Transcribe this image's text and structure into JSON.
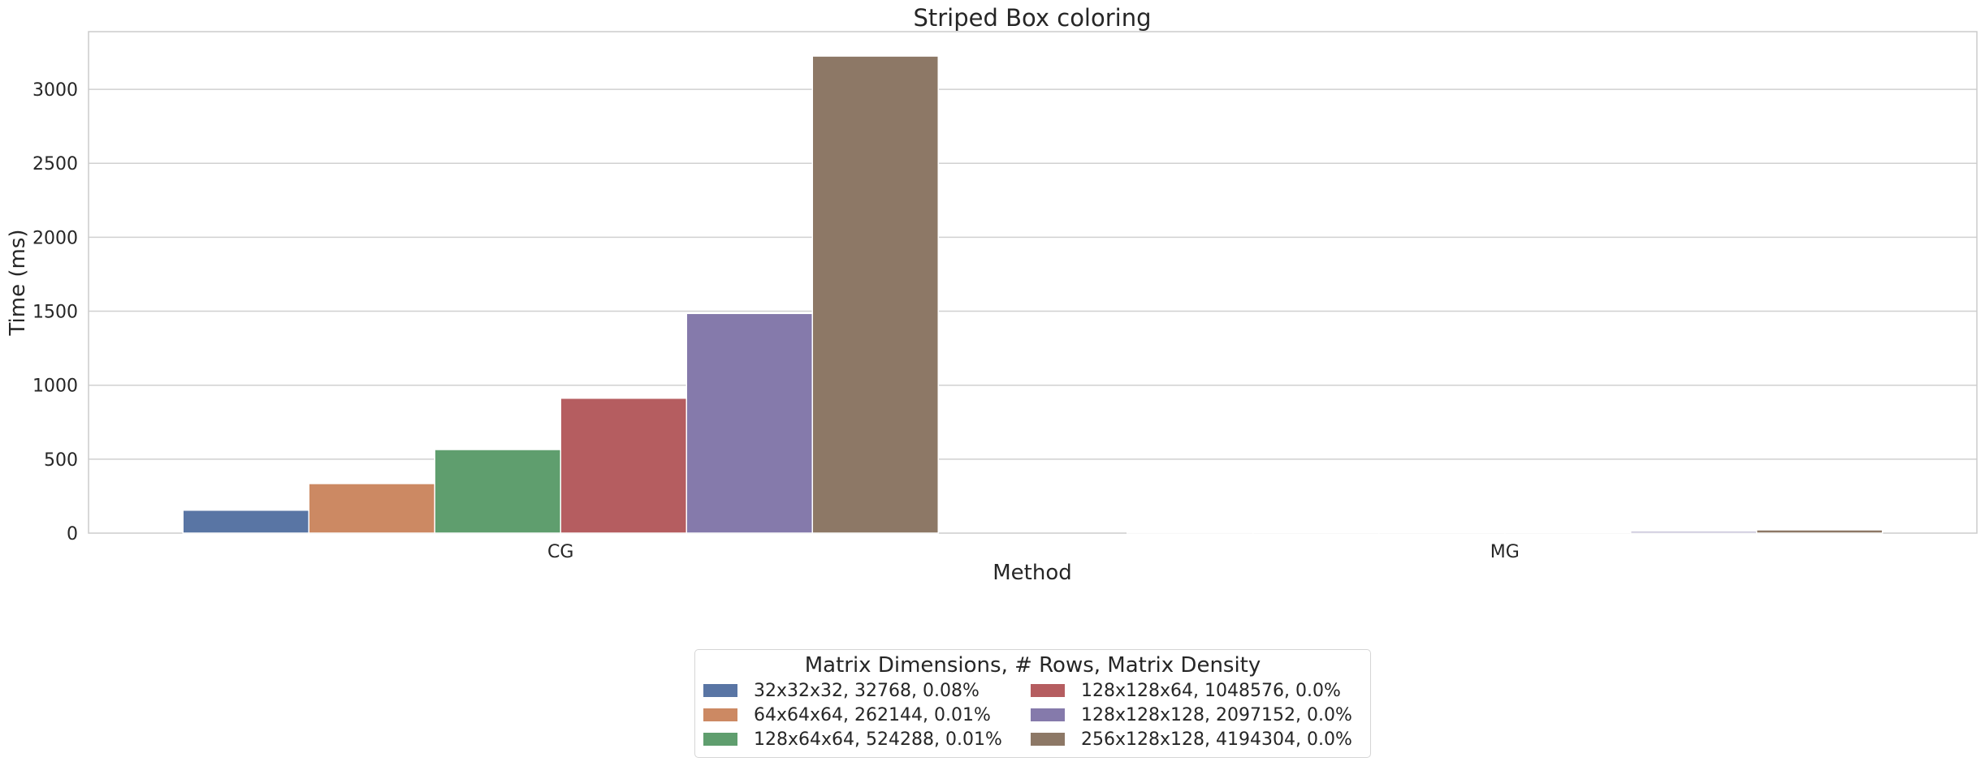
{
  "chart_data": {
    "type": "bar",
    "title": "Striped Box coloring",
    "xlabel": "Method",
    "ylabel": "Time (ms)",
    "categories": [
      "CG",
      "MG"
    ],
    "ylim": [
      0,
      3390
    ],
    "yticks": [
      0,
      500,
      1000,
      1500,
      2000,
      2500,
      3000
    ],
    "grid": true,
    "legend": {
      "title": "Matrix Dimensions, # Rows, Matrix Density",
      "placement": "bottom-center",
      "columns": 2
    },
    "series": [
      {
        "name": "32x32x32, 32768, 0.08%",
        "color": "#5975a4",
        "values": [
          155,
          1
        ]
      },
      {
        "name": "64x64x64, 262144, 0.01%",
        "color": "#cc8963",
        "values": [
          335,
          2
        ]
      },
      {
        "name": "128x64x64, 524288, 0.01%",
        "color": "#5f9e6e",
        "values": [
          565,
          3
        ]
      },
      {
        "name": "128x128x64, 1048576, 0.0%",
        "color": "#b55d60",
        "values": [
          912,
          5
        ]
      },
      {
        "name": "128x128x128, 2097152, 0.0%",
        "color": "#857aab",
        "values": [
          1485,
          12
        ]
      },
      {
        "name": "256x128x128, 4194304, 0.0%",
        "color": "#8d7866",
        "values": [
          3225,
          22
        ]
      }
    ]
  }
}
